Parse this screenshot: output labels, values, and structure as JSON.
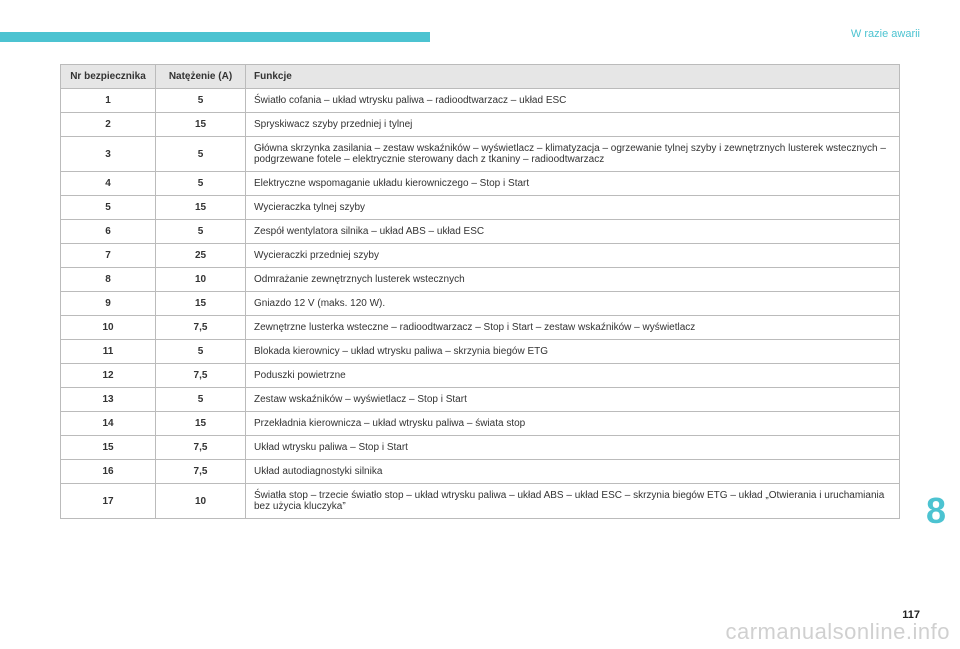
{
  "section_title": "W razie awarii",
  "side_number": "8",
  "page_number": "117",
  "watermark": "carmanualsonline.info",
  "table": {
    "headers": {
      "num": "Nr bezpiecznika",
      "amp": "Natężenie (A)",
      "func": "Funkcje"
    },
    "rows": [
      {
        "num": "1",
        "amp": "5",
        "func": "Światło cofania – układ wtrysku paliwa – radioodtwarzacz – układ ESC"
      },
      {
        "num": "2",
        "amp": "15",
        "func": "Spryskiwacz szyby przedniej i tylnej"
      },
      {
        "num": "3",
        "amp": "5",
        "func": "Główna skrzynka zasilania – zestaw wskaźników – wyświetlacz – klimatyzacja – ogrzewanie tylnej szyby i zewnętrznych lusterek wstecznych – podgrzewane fotele – elektrycznie sterowany dach z tkaniny – radioodtwarzacz"
      },
      {
        "num": "4",
        "amp": "5",
        "func": "Elektryczne wspomaganie układu kierowniczego – Stop i Start"
      },
      {
        "num": "5",
        "amp": "15",
        "func": "Wycieraczka tylnej szyby"
      },
      {
        "num": "6",
        "amp": "5",
        "func": "Zespół wentylatora silnika – układ ABS – układ ESC"
      },
      {
        "num": "7",
        "amp": "25",
        "func": "Wycieraczki przedniej szyby"
      },
      {
        "num": "8",
        "amp": "10",
        "func": "Odmrażanie zewnętrznych lusterek wstecznych"
      },
      {
        "num": "9",
        "amp": "15",
        "func": "Gniazdo 12 V (maks. 120 W)."
      },
      {
        "num": "10",
        "amp": "7,5",
        "func": "Zewnętrzne lusterka wsteczne – radioodtwarzacz – Stop i Start – zestaw wskaźników – wyświetlacz"
      },
      {
        "num": "11",
        "amp": "5",
        "func": "Blokada kierownicy – układ wtrysku paliwa – skrzynia biegów ETG"
      },
      {
        "num": "12",
        "amp": "7,5",
        "func": "Poduszki powietrzne"
      },
      {
        "num": "13",
        "amp": "5",
        "func": "Zestaw wskaźników – wyświetlacz – Stop i Start"
      },
      {
        "num": "14",
        "amp": "15",
        "func": "Przekładnia kierownicza – układ wtrysku paliwa – świata stop"
      },
      {
        "num": "15",
        "amp": "7,5",
        "func": "Układ wtrysku paliwa – Stop i Start"
      },
      {
        "num": "16",
        "amp": "7,5",
        "func": "Układ autodiagnostyki silnika"
      },
      {
        "num": "17",
        "amp": "10",
        "func": "Światła stop – trzecie światło stop – układ wtrysku paliwa – układ ABS – układ ESC – skrzynia biegów ETG – układ „Otwierania i uruchamiania bez użycia kluczyka”"
      }
    ]
  }
}
